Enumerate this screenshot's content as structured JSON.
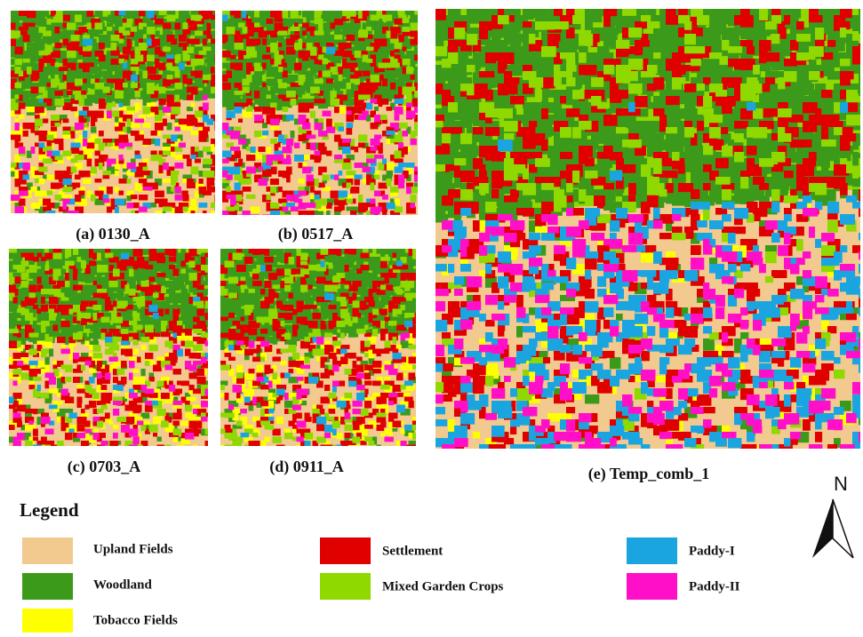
{
  "panels": [
    {
      "label": "(a) 0130_A"
    },
    {
      "label": "(b) 0517_A"
    },
    {
      "label": "(c) 0703_A"
    },
    {
      "label": "(d) 0911_A"
    },
    {
      "label": "(e) Temp_comb_1"
    }
  ],
  "legend": {
    "title": "Legend",
    "items": [
      {
        "name": "Upland Fields",
        "color": "#f2c98e"
      },
      {
        "name": "Woodland",
        "color": "#3c9a1a"
      },
      {
        "name": "Tobacco Fields",
        "color": "#ffff00"
      },
      {
        "name": "Settlement",
        "color": "#e00000"
      },
      {
        "name": "Mixed Garden Crops",
        "color": "#8fd800"
      },
      {
        "name": "Paddy-I",
        "color": "#1aa5e0"
      },
      {
        "name": "Paddy-II",
        "color": "#ff10c8"
      }
    ]
  },
  "north": "N"
}
